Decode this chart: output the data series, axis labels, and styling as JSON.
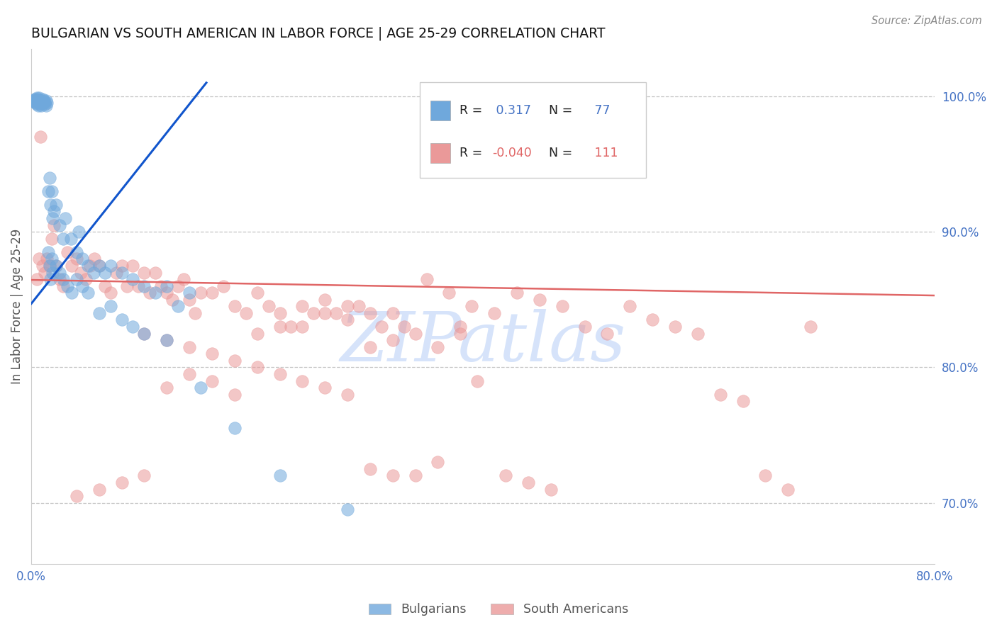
{
  "title": "BULGARIAN VS SOUTH AMERICAN IN LABOR FORCE | AGE 25-29 CORRELATION CHART",
  "source": "Source: ZipAtlas.com",
  "ylabel_left": "In Labor Force | Age 25-29",
  "y_ticks_right": [
    0.7,
    0.8,
    0.9,
    1.0
  ],
  "y_tick_labels_right": [
    "70.0%",
    "80.0%",
    "90.0%",
    "100.0%"
  ],
  "xlim": [
    0.0,
    0.8
  ],
  "ylim": [
    0.655,
    1.035
  ],
  "blue_color": "#6fa8dc",
  "pink_color": "#ea9999",
  "blue_line_color": "#1155cc",
  "pink_line_color": "#e06666",
  "grid_color": "#b7b7b7",
  "tick_color": "#4472c4",
  "R_blue": 0.317,
  "N_blue": 77,
  "R_pink": -0.04,
  "N_pink": 111,
  "legend_label_blue": "Bulgarians",
  "legend_label_pink": "South Americans",
  "watermark": "ZIPatlas",
  "blue_trend_x": [
    0.0,
    0.155
  ],
  "blue_trend_y": [
    0.847,
    1.01
  ],
  "pink_trend_x": [
    0.0,
    0.8
  ],
  "pink_trend_y": [
    0.8645,
    0.853
  ],
  "blue_pts_x": [
    0.002,
    0.003,
    0.003,
    0.004,
    0.004,
    0.004,
    0.005,
    0.005,
    0.005,
    0.006,
    0.006,
    0.006,
    0.007,
    0.007,
    0.007,
    0.008,
    0.008,
    0.009,
    0.009,
    0.01,
    0.01,
    0.011,
    0.011,
    0.012,
    0.012,
    0.013,
    0.013,
    0.014,
    0.015,
    0.016,
    0.017,
    0.018,
    0.019,
    0.02,
    0.022,
    0.025,
    0.028,
    0.03,
    0.035,
    0.04,
    0.042,
    0.045,
    0.05,
    0.055,
    0.06,
    0.065,
    0.07,
    0.08,
    0.09,
    0.1,
    0.11,
    0.12,
    0.13,
    0.14,
    0.015,
    0.016,
    0.017,
    0.018,
    0.019,
    0.022,
    0.025,
    0.028,
    0.032,
    0.036,
    0.04,
    0.045,
    0.05,
    0.06,
    0.07,
    0.08,
    0.09,
    0.1,
    0.12,
    0.15,
    0.18,
    0.22,
    0.28
  ],
  "blue_pts_y": [
    0.997,
    0.998,
    0.996,
    0.997,
    0.998,
    0.995,
    0.997,
    0.999,
    0.994,
    0.998,
    0.996,
    0.993,
    0.997,
    0.995,
    0.999,
    0.997,
    0.994,
    0.997,
    0.993,
    0.996,
    0.998,
    0.995,
    0.997,
    0.994,
    0.996,
    0.997,
    0.993,
    0.995,
    0.93,
    0.94,
    0.92,
    0.93,
    0.91,
    0.915,
    0.92,
    0.905,
    0.895,
    0.91,
    0.895,
    0.885,
    0.9,
    0.88,
    0.875,
    0.87,
    0.875,
    0.87,
    0.875,
    0.87,
    0.865,
    0.86,
    0.855,
    0.86,
    0.845,
    0.855,
    0.885,
    0.875,
    0.865,
    0.88,
    0.87,
    0.875,
    0.87,
    0.865,
    0.86,
    0.855,
    0.865,
    0.86,
    0.855,
    0.84,
    0.845,
    0.835,
    0.83,
    0.825,
    0.82,
    0.785,
    0.755,
    0.72,
    0.695
  ],
  "pink_pts_x": [
    0.005,
    0.007,
    0.008,
    0.01,
    0.012,
    0.014,
    0.016,
    0.018,
    0.02,
    0.022,
    0.025,
    0.028,
    0.032,
    0.036,
    0.04,
    0.044,
    0.048,
    0.052,
    0.056,
    0.06,
    0.065,
    0.07,
    0.075,
    0.08,
    0.085,
    0.09,
    0.095,
    0.1,
    0.105,
    0.11,
    0.115,
    0.12,
    0.125,
    0.13,
    0.135,
    0.14,
    0.145,
    0.15,
    0.16,
    0.17,
    0.18,
    0.19,
    0.2,
    0.21,
    0.22,
    0.23,
    0.24,
    0.25,
    0.26,
    0.27,
    0.28,
    0.29,
    0.3,
    0.31,
    0.32,
    0.33,
    0.35,
    0.37,
    0.39,
    0.41,
    0.43,
    0.45,
    0.47,
    0.49,
    0.51,
    0.53,
    0.55,
    0.57,
    0.59,
    0.61,
    0.63,
    0.65,
    0.67,
    0.69,
    0.38,
    0.36,
    0.34,
    0.32,
    0.3,
    0.28,
    0.26,
    0.24,
    0.22,
    0.2,
    0.18,
    0.16,
    0.14,
    0.12,
    0.1,
    0.08,
    0.06,
    0.04,
    0.395,
    0.42,
    0.44,
    0.46,
    0.36,
    0.34,
    0.32,
    0.3,
    0.28,
    0.26,
    0.24,
    0.22,
    0.2,
    0.18,
    0.16,
    0.14,
    0.12,
    0.1,
    0.38
  ],
  "pink_pts_y": [
    0.865,
    0.88,
    0.97,
    0.875,
    0.87,
    0.88,
    0.875,
    0.895,
    0.905,
    0.875,
    0.865,
    0.86,
    0.885,
    0.875,
    0.88,
    0.87,
    0.865,
    0.875,
    0.88,
    0.875,
    0.86,
    0.855,
    0.87,
    0.875,
    0.86,
    0.875,
    0.86,
    0.87,
    0.855,
    0.87,
    0.86,
    0.855,
    0.85,
    0.86,
    0.865,
    0.85,
    0.84,
    0.855,
    0.855,
    0.86,
    0.845,
    0.84,
    0.855,
    0.845,
    0.84,
    0.83,
    0.845,
    0.84,
    0.85,
    0.84,
    0.835,
    0.845,
    0.84,
    0.83,
    0.84,
    0.83,
    0.865,
    0.855,
    0.845,
    0.84,
    0.855,
    0.85,
    0.845,
    0.83,
    0.825,
    0.845,
    0.835,
    0.83,
    0.825,
    0.78,
    0.775,
    0.72,
    0.71,
    0.83,
    0.825,
    0.815,
    0.825,
    0.82,
    0.815,
    0.845,
    0.84,
    0.83,
    0.83,
    0.825,
    0.78,
    0.79,
    0.795,
    0.785,
    0.72,
    0.715,
    0.71,
    0.705,
    0.79,
    0.72,
    0.715,
    0.71,
    0.73,
    0.72,
    0.72,
    0.725,
    0.78,
    0.785,
    0.79,
    0.795,
    0.8,
    0.805,
    0.81,
    0.815,
    0.82,
    0.825,
    0.83
  ]
}
